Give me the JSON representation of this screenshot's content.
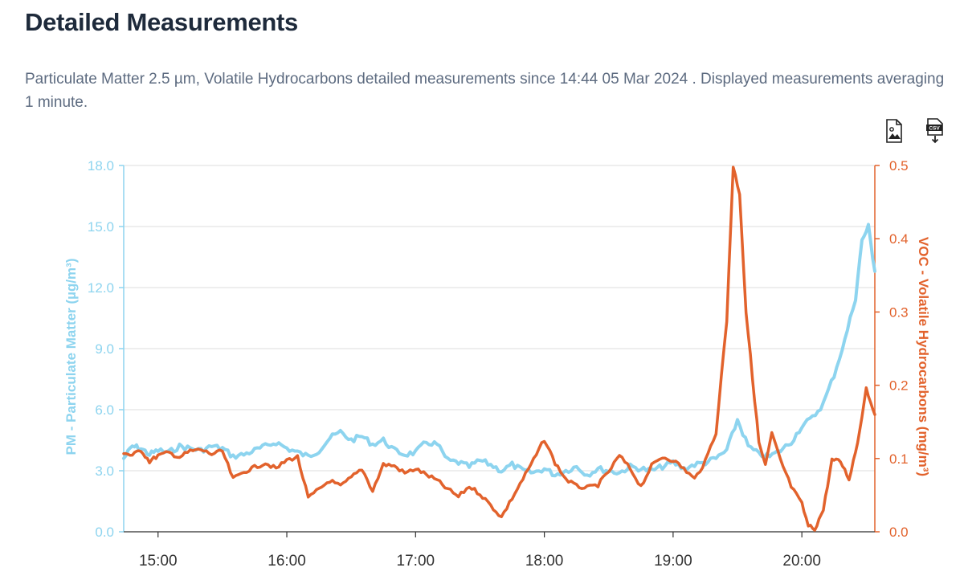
{
  "page": {
    "title": "Detailed Measurements",
    "description": "Particulate Matter 2.5 µm, Volatile Hydrocarbons detailed measurements since 14:44 05 Mar 2024 . Displayed measurements averaging 1 minute.",
    "tools": [
      {
        "icon": "image-download-icon"
      },
      {
        "icon": "csv-download-icon",
        "label": "CSV"
      }
    ]
  },
  "chart_data": {
    "type": "line",
    "title": "",
    "x_axis": {
      "range": [
        "14:44",
        "20:34"
      ],
      "ticks": [
        "15:00",
        "16:00",
        "17:00",
        "18:00",
        "19:00",
        "20:00"
      ]
    },
    "y_left": {
      "label": "PM - Particulate Matter (µg/m³)",
      "range": [
        0,
        18
      ],
      "ticks": [
        "0.0",
        "3.0",
        "6.0",
        "9.0",
        "12.0",
        "15.0",
        "18.0"
      ],
      "color": "#8dd4ef"
    },
    "y_right": {
      "label": "VOC - Volatile Hydrocarbons (mg/m³)",
      "range": [
        0,
        0.5
      ],
      "ticks": [
        "0.0",
        "0.1",
        "0.2",
        "0.3",
        "0.4",
        "0.5"
      ],
      "color": "#e2622c"
    },
    "grid": true,
    "series": [
      {
        "axis": "left",
        "color": "#8dd4ef",
        "points": [
          [
            "14:44",
            3.6
          ],
          [
            "14:48",
            4.2
          ],
          [
            "14:52",
            4.1
          ],
          [
            "14:56",
            3.8
          ],
          [
            "15:00",
            4.0
          ],
          [
            "15:05",
            3.9
          ],
          [
            "15:10",
            4.2
          ],
          [
            "15:15",
            4.1
          ],
          [
            "15:20",
            4.0
          ],
          [
            "15:25",
            4.2
          ],
          [
            "15:30",
            4.1
          ],
          [
            "15:35",
            3.7
          ],
          [
            "15:40",
            3.8
          ],
          [
            "15:45",
            4.0
          ],
          [
            "15:50",
            4.2
          ],
          [
            "15:55",
            4.4
          ],
          [
            "16:00",
            4.1
          ],
          [
            "16:05",
            3.9
          ],
          [
            "16:10",
            3.7
          ],
          [
            "16:15",
            4.0
          ],
          [
            "16:20",
            4.6
          ],
          [
            "16:25",
            4.9
          ],
          [
            "16:30",
            4.5
          ],
          [
            "16:35",
            4.7
          ],
          [
            "16:40",
            4.3
          ],
          [
            "16:45",
            4.5
          ],
          [
            "16:50",
            4.0
          ],
          [
            "16:55",
            3.8
          ],
          [
            "17:00",
            3.9
          ],
          [
            "17:05",
            4.4
          ],
          [
            "17:10",
            4.3
          ],
          [
            "17:15",
            3.5
          ],
          [
            "17:20",
            3.4
          ],
          [
            "17:25",
            3.2
          ],
          [
            "17:30",
            3.5
          ],
          [
            "17:35",
            3.3
          ],
          [
            "17:40",
            3.0
          ],
          [
            "17:45",
            3.3
          ],
          [
            "17:50",
            3.0
          ],
          [
            "17:55",
            2.9
          ],
          [
            "18:00",
            3.1
          ],
          [
            "18:05",
            2.8
          ],
          [
            "18:10",
            3.0
          ],
          [
            "18:15",
            3.2
          ],
          [
            "18:20",
            2.8
          ],
          [
            "18:25",
            3.1
          ],
          [
            "18:30",
            3.0
          ],
          [
            "18:35",
            2.9
          ],
          [
            "18:40",
            3.2
          ],
          [
            "18:45",
            3.1
          ],
          [
            "18:50",
            3.0
          ],
          [
            "18:55",
            3.2
          ],
          [
            "19:00",
            3.4
          ],
          [
            "19:05",
            3.1
          ],
          [
            "19:10",
            3.3
          ],
          [
            "19:15",
            3.4
          ],
          [
            "19:20",
            3.6
          ],
          [
            "19:25",
            4.0
          ],
          [
            "19:30",
            5.5
          ],
          [
            "19:35",
            4.2
          ],
          [
            "19:40",
            3.8
          ],
          [
            "19:45",
            3.7
          ],
          [
            "19:50",
            4.0
          ],
          [
            "19:55",
            4.4
          ],
          [
            "20:00",
            5.2
          ],
          [
            "20:05",
            5.6
          ],
          [
            "20:10",
            6.3
          ],
          [
            "20:15",
            7.7
          ],
          [
            "20:20",
            9.4
          ],
          [
            "20:25",
            11.5
          ],
          [
            "20:28",
            14.3
          ],
          [
            "20:31",
            15.0
          ],
          [
            "20:34",
            12.8
          ]
        ]
      },
      {
        "axis": "right",
        "color": "#e2622c",
        "points": [
          [
            "14:44",
            0.108
          ],
          [
            "14:48",
            0.104
          ],
          [
            "14:52",
            0.112
          ],
          [
            "14:56",
            0.096
          ],
          [
            "15:00",
            0.104
          ],
          [
            "15:05",
            0.108
          ],
          [
            "15:10",
            0.102
          ],
          [
            "15:15",
            0.11
          ],
          [
            "15:20",
            0.112
          ],
          [
            "15:25",
            0.106
          ],
          [
            "15:30",
            0.11
          ],
          [
            "15:35",
            0.072
          ],
          [
            "15:40",
            0.082
          ],
          [
            "15:45",
            0.088
          ],
          [
            "15:50",
            0.094
          ],
          [
            "15:55",
            0.086
          ],
          [
            "16:00",
            0.098
          ],
          [
            "16:05",
            0.102
          ],
          [
            "16:10",
            0.046
          ],
          [
            "16:15",
            0.058
          ],
          [
            "16:20",
            0.07
          ],
          [
            "16:25",
            0.062
          ],
          [
            "16:30",
            0.074
          ],
          [
            "16:35",
            0.086
          ],
          [
            "16:40",
            0.056
          ],
          [
            "16:45",
            0.092
          ],
          [
            "16:50",
            0.09
          ],
          [
            "16:55",
            0.08
          ],
          [
            "17:00",
            0.086
          ],
          [
            "17:05",
            0.078
          ],
          [
            "17:10",
            0.07
          ],
          [
            "17:15",
            0.058
          ],
          [
            "17:20",
            0.048
          ],
          [
            "17:25",
            0.062
          ],
          [
            "17:30",
            0.052
          ],
          [
            "17:35",
            0.036
          ],
          [
            "17:40",
            0.02
          ],
          [
            "17:45",
            0.046
          ],
          [
            "17:50",
            0.072
          ],
          [
            "17:55",
            0.098
          ],
          [
            "18:00",
            0.126
          ],
          [
            "18:05",
            0.094
          ],
          [
            "18:10",
            0.072
          ],
          [
            "18:15",
            0.062
          ],
          [
            "18:20",
            0.06
          ],
          [
            "18:25",
            0.064
          ],
          [
            "18:30",
            0.082
          ],
          [
            "18:35",
            0.104
          ],
          [
            "18:40",
            0.086
          ],
          [
            "18:45",
            0.062
          ],
          [
            "18:50",
            0.09
          ],
          [
            "18:55",
            0.102
          ],
          [
            "19:00",
            0.098
          ],
          [
            "19:05",
            0.086
          ],
          [
            "19:10",
            0.072
          ],
          [
            "19:15",
            0.096
          ],
          [
            "19:20",
            0.136
          ],
          [
            "19:25",
            0.288
          ],
          [
            "19:28",
            0.498
          ],
          [
            "19:31",
            0.462
          ],
          [
            "19:34",
            0.3
          ],
          [
            "19:37",
            0.21
          ],
          [
            "19:40",
            0.122
          ],
          [
            "19:43",
            0.09
          ],
          [
            "19:46",
            0.134
          ],
          [
            "19:50",
            0.098
          ],
          [
            "19:55",
            0.062
          ],
          [
            "20:00",
            0.038
          ],
          [
            "20:03",
            0.008
          ],
          [
            "20:06",
            0.004
          ],
          [
            "20:10",
            0.03
          ],
          [
            "20:14",
            0.098
          ],
          [
            "20:18",
            0.096
          ],
          [
            "20:22",
            0.072
          ],
          [
            "20:26",
            0.122
          ],
          [
            "20:30",
            0.196
          ],
          [
            "20:34",
            0.16
          ]
        ]
      }
    ]
  }
}
